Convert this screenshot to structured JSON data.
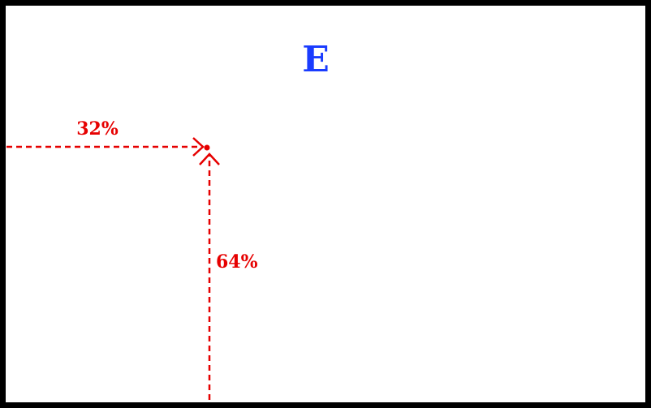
{
  "diagram": {
    "title": "E",
    "horizontal_label": "32%",
    "vertical_label": "64%",
    "horizontal_fraction": 0.32,
    "vertical_fraction": 0.64
  },
  "colors": {
    "title": "#1a3cff",
    "marker": "#e60000",
    "frame": "#000000",
    "background": "#ffffff"
  }
}
